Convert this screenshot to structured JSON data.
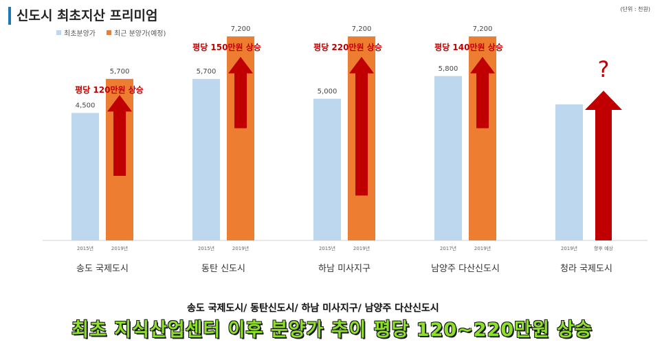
{
  "title": "신도시 최초지산 프리미엄",
  "unit_note": "(단위 : 천원)",
  "colors": {
    "initial": "#bdd7ee",
    "recent": "#ed7d31",
    "arrow": "#c00000",
    "annotation": "#c00000",
    "headline": "#8ee02b"
  },
  "chart_data": {
    "type": "bar",
    "ylim": [
      0,
      8000
    ],
    "legend": [
      "최초분양가",
      "최근 분양가(예정)"
    ],
    "legend_position": "top-left",
    "groups": [
      {
        "name": "송도 국제도시",
        "bars": [
          {
            "series": "최초분양가",
            "year": "2015년",
            "value": 4500,
            "label": "4,500"
          },
          {
            "series": "최근 분양가(예정)",
            "year": "2019년",
            "value": 5700,
            "label": "5,700"
          }
        ],
        "annotation": "평당 120만원 상승"
      },
      {
        "name": "동탄 신도시",
        "bars": [
          {
            "series": "최초분양가",
            "year": "2015년",
            "value": 5700,
            "label": "5,700"
          },
          {
            "series": "최근 분양가(예정)",
            "year": "2019년",
            "value": 7200,
            "label": "7,200"
          }
        ],
        "annotation": "평당 150만원 상승"
      },
      {
        "name": "하남 미사지구",
        "bars": [
          {
            "series": "최초분양가",
            "year": "2015년",
            "value": 5000,
            "label": "5,000"
          },
          {
            "series": "최근 분양가(예정)",
            "year": "2019년",
            "value": 7200,
            "label": "7,200"
          }
        ],
        "annotation": "평당 220만원 상승"
      },
      {
        "name": "남양주 다산신도시",
        "bars": [
          {
            "series": "최초분양가",
            "year": "2017년",
            "value": 5800,
            "label": "5,800"
          },
          {
            "series": "최근 분양가(예정)",
            "year": "2019년",
            "value": 7200,
            "label": "7,200"
          }
        ],
        "annotation": "평당 140만원 상승"
      },
      {
        "name": "청라 국제도시",
        "bars": [
          {
            "series": "최초분양가",
            "year": "2019년",
            "value": 4800,
            "label": ""
          }
        ],
        "future_label": "향후 예상",
        "future_mark": "?"
      }
    ]
  },
  "footer": {
    "cities": "송도 국제도시/ 동탄신도시/ 하남 미사지구/ 남양주 다산신도시",
    "headline": "최초 지식산업센터 이후 분양가 추이 평당 120~220만원 상승"
  }
}
